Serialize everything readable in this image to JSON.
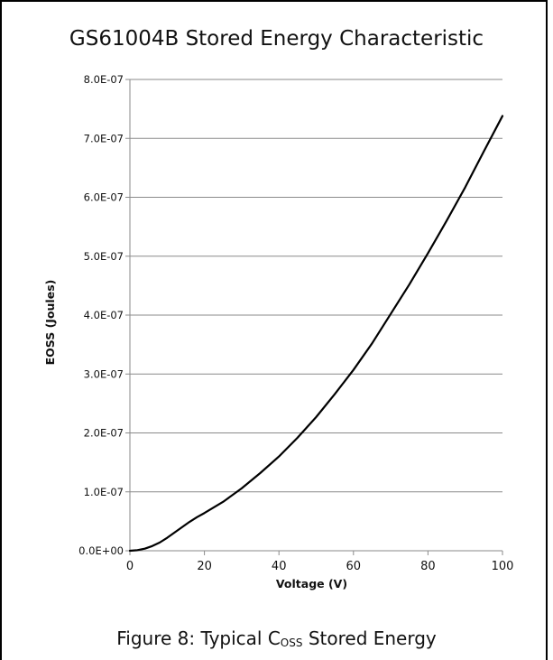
{
  "chart_data": {
    "type": "line",
    "title": "GS61004B Stored Energy Characteristic",
    "xlabel": "Voltage (V)",
    "ylabel": "EOSS (Joules)",
    "xlim": [
      0,
      100
    ],
    "ylim": [
      0,
      8e-07
    ],
    "x_ticks": [
      0,
      20,
      40,
      60,
      80,
      100
    ],
    "x_tick_labels": [
      "0",
      "20",
      "40",
      "60",
      "80",
      "100"
    ],
    "y_ticks": [
      0,
      1e-07,
      2e-07,
      3e-07,
      4e-07,
      5e-07,
      6e-07,
      7e-07,
      8e-07
    ],
    "y_tick_labels": [
      "0.0E+00",
      "1.0E-07",
      "2.0E-07",
      "3.0E-07",
      "4.0E-07",
      "5.0E-07",
      "6.0E-07",
      "7.0E-07",
      "8.0E-07"
    ],
    "grid": "horizontal",
    "legend": "none",
    "series": [
      {
        "color": "#000000",
        "x": [
          0,
          2,
          4,
          6,
          8,
          10,
          12,
          14,
          16,
          18,
          20,
          25,
          30,
          35,
          40,
          45,
          50,
          55,
          60,
          65,
          70,
          75,
          80,
          85,
          90,
          95,
          100
        ],
        "y": [
          0,
          1e-09,
          3.5e-09,
          8e-09,
          1.4e-08,
          2.2e-08,
          3.1e-08,
          4e-08,
          4.9e-08,
          5.7e-08,
          6.4e-08,
          8.3e-08,
          1.06e-07,
          1.32e-07,
          1.6e-07,
          1.92e-07,
          2.27e-07,
          2.66e-07,
          3.07e-07,
          3.52e-07,
          4.02e-07,
          4.52e-07,
          5.05e-07,
          5.6e-07,
          6.17e-07,
          6.78e-07,
          7.38e-07
        ]
      }
    ]
  },
  "caption": {
    "prefix": "Figure 8: Typical C",
    "subscript": "OSS",
    "suffix": " Stored Energy"
  }
}
